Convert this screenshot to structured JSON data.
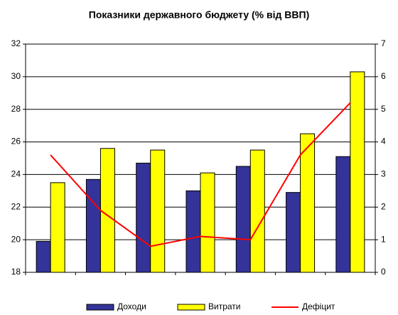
{
  "chart_data": {
    "type": "bar",
    "title": "Показники державного бюджету (% від ВВП)",
    "categories": [
      null,
      null,
      null,
      null,
      null,
      null,
      null
    ],
    "series": [
      {
        "name": "Доходи",
        "color": "#333399",
        "values": [
          19.9,
          23.7,
          24.7,
          23.0,
          24.5,
          22.9,
          25.1
        ]
      },
      {
        "name": "Витрати",
        "color": "#ffff00",
        "values": [
          23.5,
          25.6,
          25.5,
          24.1,
          25.5,
          26.5,
          30.3
        ]
      },
      {
        "name": "Дефіцит",
        "color": "#ff0000",
        "type": "line",
        "axis": "y2",
        "values": [
          3.6,
          1.9,
          0.8,
          1.1,
          1.0,
          3.6,
          5.2
        ]
      }
    ],
    "ylim": [
      18,
      32
    ],
    "yticks": [
      18,
      20,
      22,
      24,
      26,
      28,
      30,
      32
    ],
    "y2lim": [
      0,
      7
    ],
    "y2ticks": [
      0,
      1,
      2,
      3,
      4,
      5,
      6,
      7
    ],
    "grid": true,
    "legend": "bottom"
  }
}
